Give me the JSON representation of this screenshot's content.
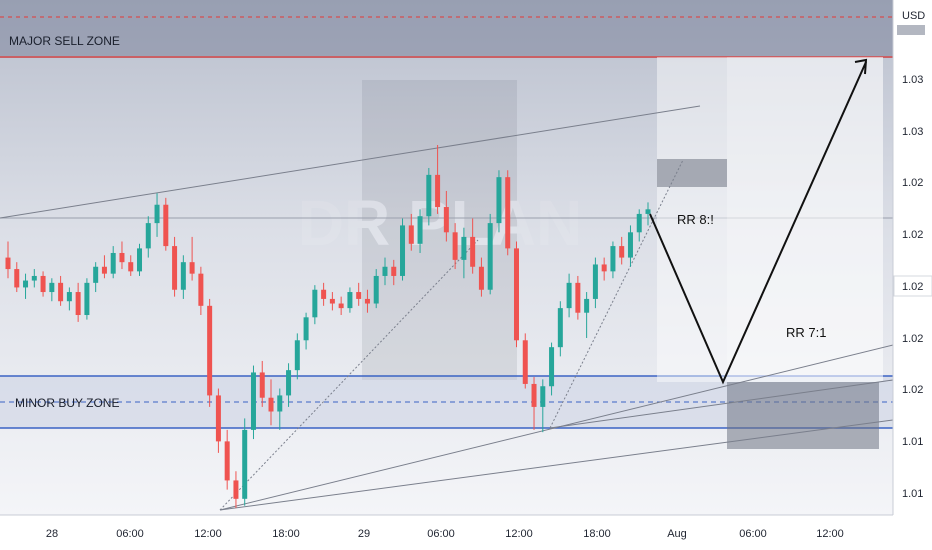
{
  "chart_data": {
    "type": "candlestick",
    "currency": "USD",
    "x_ticks": [
      "28",
      "06:00",
      "12:00",
      "18:00",
      "29",
      "06:00",
      "12:00",
      "18:00",
      "Aug",
      "06:00",
      "12:00"
    ],
    "y_ticks": [
      "1.03",
      "1.03",
      "1.02",
      "1.02",
      "1.02",
      "1.02",
      "1.02",
      "1.01",
      "1.01"
    ],
    "current_price": "1.02",
    "zones": {
      "major_sell": "MAJOR SELL ZONE",
      "minor_buy": "MINOR BUY ZONE"
    },
    "annotations": {
      "rr_first": "RR  8:!",
      "rr_second": "RR 7:1"
    },
    "watermark": "DR PLAN",
    "colors": {
      "up": "#26a69a",
      "down": "#ef5350",
      "sell_zone": "#8c92a8",
      "sell_line": "#e53935",
      "buy_line": "#3b63c4",
      "background": "#e3e6ee"
    },
    "candles": [
      [
        1.0205,
        1.0212,
        1.0196,
        1.02
      ],
      [
        1.02,
        1.0203,
        1.019,
        1.0192
      ],
      [
        1.0192,
        1.0198,
        1.0187,
        1.0195
      ],
      [
        1.0195,
        1.02,
        1.0192,
        1.0197
      ],
      [
        1.0197,
        1.0199,
        1.0188,
        1.019
      ],
      [
        1.019,
        1.0196,
        1.0186,
        1.0194
      ],
      [
        1.0194,
        1.0197,
        1.0184,
        1.0186
      ],
      [
        1.0186,
        1.0192,
        1.0182,
        1.019
      ],
      [
        1.019,
        1.0194,
        1.0177,
        1.018
      ],
      [
        1.018,
        1.0196,
        1.0178,
        1.0194
      ],
      [
        1.0194,
        1.0203,
        1.019,
        1.0201
      ],
      [
        1.0201,
        1.0206,
        1.0196,
        1.0198
      ],
      [
        1.0198,
        1.021,
        1.0196,
        1.0207
      ],
      [
        1.0207,
        1.0212,
        1.02,
        1.0203
      ],
      [
        1.0203,
        1.0206,
        1.0197,
        1.0199
      ],
      [
        1.0199,
        1.0211,
        1.0197,
        1.0209
      ],
      [
        1.0209,
        1.0223,
        1.0205,
        1.022
      ],
      [
        1.022,
        1.0233,
        1.0214,
        1.0228
      ],
      [
        1.0228,
        1.0231,
        1.0208,
        1.021
      ],
      [
        1.021,
        1.0214,
        1.0188,
        1.0191
      ],
      [
        1.0191,
        1.0206,
        1.0187,
        1.0203
      ],
      [
        1.0203,
        1.0214,
        1.0195,
        1.0198
      ],
      [
        1.0198,
        1.0201,
        1.018,
        1.0184
      ],
      [
        1.0184,
        1.0187,
        1.014,
        1.0145
      ],
      [
        1.0145,
        1.0148,
        1.012,
        1.0125
      ],
      [
        1.0125,
        1.013,
        1.0104,
        1.0108
      ],
      [
        1.0108,
        1.0112,
        1.0096,
        1.01
      ],
      [
        1.01,
        1.0135,
        1.0097,
        1.013
      ],
      [
        1.013,
        1.0158,
        1.0126,
        1.0155
      ],
      [
        1.0155,
        1.016,
        1.014,
        1.0144
      ],
      [
        1.0144,
        1.0152,
        1.0132,
        1.0138
      ],
      [
        1.0138,
        1.0148,
        1.013,
        1.0145
      ],
      [
        1.0145,
        1.0159,
        1.014,
        1.0156
      ],
      [
        1.0156,
        1.0172,
        1.0152,
        1.0169
      ],
      [
        1.0169,
        1.0181,
        1.0165,
        1.0179
      ],
      [
        1.0179,
        1.0193,
        1.0176,
        1.0191
      ],
      [
        1.0191,
        1.0194,
        1.0184,
        1.0187
      ],
      [
        1.0187,
        1.019,
        1.0182,
        1.0185
      ],
      [
        1.0185,
        1.0188,
        1.018,
        1.0183
      ],
      [
        1.0183,
        1.0192,
        1.0181,
        1.019
      ],
      [
        1.019,
        1.0194,
        1.0184,
        1.0187
      ],
      [
        1.0187,
        1.0191,
        1.0181,
        1.0185
      ],
      [
        1.0185,
        1.02,
        1.0183,
        1.0197
      ],
      [
        1.0197,
        1.0205,
        1.0193,
        1.0201
      ],
      [
        1.0201,
        1.0204,
        1.0193,
        1.0197
      ],
      [
        1.0197,
        1.0222,
        1.0195,
        1.0219
      ],
      [
        1.0219,
        1.0224,
        1.0208,
        1.0211
      ],
      [
        1.0211,
        1.0226,
        1.0207,
        1.0223
      ],
      [
        1.0223,
        1.0244,
        1.0219,
        1.0241
      ],
      [
        1.0241,
        1.0254,
        1.0224,
        1.0227
      ],
      [
        1.0227,
        1.0234,
        1.0212,
        1.0216
      ],
      [
        1.0216,
        1.022,
        1.02,
        1.0204
      ],
      [
        1.0204,
        1.0218,
        1.0196,
        1.0214
      ],
      [
        1.0214,
        1.0222,
        1.0198,
        1.0201
      ],
      [
        1.0201,
        1.0205,
        1.0188,
        1.0191
      ],
      [
        1.0191,
        1.0224,
        1.0189,
        1.022
      ],
      [
        1.022,
        1.0243,
        1.0216,
        1.024
      ],
      [
        1.024,
        1.0243,
        1.0206,
        1.0209
      ],
      [
        1.0209,
        1.0212,
        1.0166,
        1.0169
      ],
      [
        1.0169,
        1.0172,
        1.0148,
        1.015
      ],
      [
        1.015,
        1.0153,
        1.013,
        1.014
      ],
      [
        1.014,
        1.0152,
        1.0129,
        1.0149
      ],
      [
        1.0149,
        1.0168,
        1.0145,
        1.0166
      ],
      [
        1.0166,
        1.0186,
        1.0162,
        1.0183
      ],
      [
        1.0183,
        1.0198,
        1.0179,
        1.0194
      ],
      [
        1.0194,
        1.0197,
        1.0178,
        1.0181
      ],
      [
        1.0181,
        1.019,
        1.017,
        1.0187
      ],
      [
        1.0187,
        1.0205,
        1.0183,
        1.0202
      ],
      [
        1.0202,
        1.0205,
        1.0195,
        1.0199
      ],
      [
        1.0199,
        1.0212,
        1.0196,
        1.021
      ],
      [
        1.021,
        1.0214,
        1.0202,
        1.0205
      ],
      [
        1.0205,
        1.0219,
        1.0201,
        1.0216
      ],
      [
        1.0216,
        1.0226,
        1.0212,
        1.0224
      ],
      [
        1.0224,
        1.0229,
        1.0219,
        1.0226
      ]
    ]
  }
}
